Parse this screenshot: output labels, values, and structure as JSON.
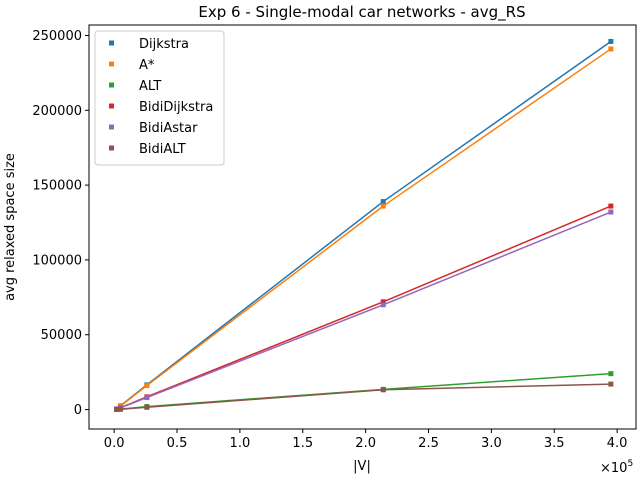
{
  "chart_data": {
    "type": "line",
    "title": "Exp 6 - Single-modal car networks - avg_RS",
    "xlabel": "|V|",
    "ylabel": "avg relaxed space size",
    "x_offset_text": "×10^5",
    "x_offset_base": "×10",
    "x_offset_exp": "5",
    "xlim": [
      -0.2,
      4.15
    ],
    "ylim": [
      -13000,
      257000
    ],
    "x_ticks": [
      0.0,
      0.5,
      1.0,
      1.5,
      2.0,
      2.5,
      3.0,
      3.5,
      4.0
    ],
    "x_tick_labels": [
      "0.0",
      "0.5",
      "1.0",
      "1.5",
      "2.0",
      "2.5",
      "3.0",
      "3.5",
      "4.0"
    ],
    "y_ticks": [
      0,
      50000,
      100000,
      150000,
      200000,
      250000
    ],
    "y_tick_labels": [
      "0",
      "50000",
      "100000",
      "150000",
      "200000",
      "250000"
    ],
    "grid": false,
    "legend_position": "top-left",
    "x": [
      0.02,
      0.05,
      0.26,
      2.14,
      3.95
    ],
    "series": [
      {
        "name": "Dijkstra",
        "color": "#1f77b4",
        "values": [
          400,
          2500,
          16500,
          139000,
          246000
        ]
      },
      {
        "name": "A*",
        "color": "#ff7f0e",
        "values": [
          380,
          2300,
          16000,
          136000,
          241000
        ]
      },
      {
        "name": "ALT",
        "color": "#2ca02c",
        "values": [
          80,
          250,
          2000,
          13500,
          24000
        ]
      },
      {
        "name": "BidiDijkstra",
        "color": "#d62728",
        "values": [
          250,
          1200,
          8500,
          72000,
          136000
        ]
      },
      {
        "name": "BidiAstar",
        "color": "#9467bd",
        "values": [
          230,
          1100,
          8000,
          70000,
          132000
        ]
      },
      {
        "name": "BidiALT",
        "color": "#8c564b",
        "values": [
          70,
          200,
          1500,
          13200,
          17000
        ]
      }
    ]
  }
}
